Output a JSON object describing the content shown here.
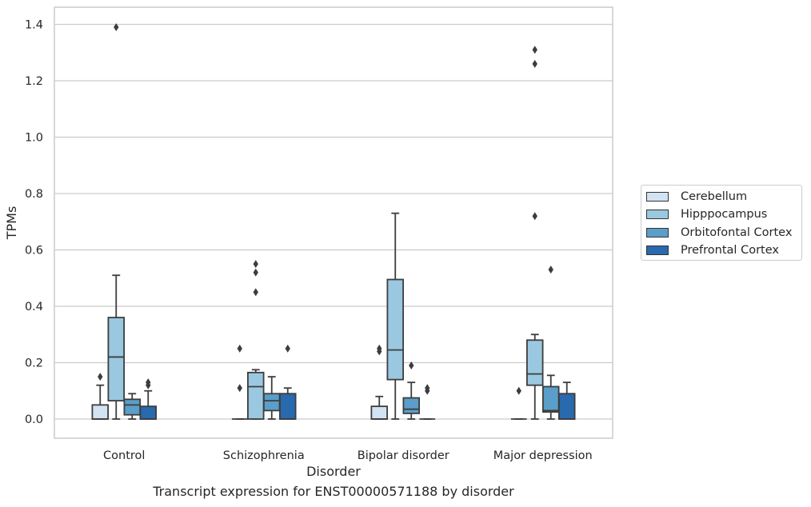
{
  "chart_data": {
    "type": "box",
    "title": "",
    "xlabel": "Disorder",
    "ylabel": "TPMs",
    "ylim": [
      -0.067,
      1.46
    ],
    "yticks": [
      "0.0",
      "0.2",
      "0.4",
      "0.6",
      "0.8",
      "1.0",
      "1.2",
      "1.4"
    ],
    "categories": [
      "Control",
      "Schizophrenia",
      "Bipolar disorder",
      "Major depression"
    ],
    "grid": "horizontal",
    "legend_position": "right",
    "series": [
      {
        "name": "Cerebellum",
        "color": "#d2e3f3",
        "boxes": [
          {
            "min": 0.0,
            "q1": 0.0,
            "median": 0.0,
            "q3": 0.05,
            "max": 0.12,
            "outliers": [
              0.15
            ]
          },
          {
            "min": 0.0,
            "q1": 0.0,
            "median": 0.0,
            "q3": 0.0,
            "max": 0.0,
            "outliers": [
              0.11,
              0.25
            ]
          },
          {
            "min": 0.0,
            "q1": 0.0,
            "median": 0.0,
            "q3": 0.045,
            "max": 0.08,
            "outliers": [
              0.24,
              0.25
            ]
          },
          {
            "min": 0.0,
            "q1": 0.0,
            "median": 0.0,
            "q3": 0.0,
            "max": 0.0,
            "outliers": [
              0.1
            ]
          }
        ]
      },
      {
        "name": "Hipppocampus",
        "color": "#9ac8e0",
        "boxes": [
          {
            "min": 0.0,
            "q1": 0.065,
            "median": 0.22,
            "q3": 0.36,
            "max": 0.51,
            "outliers": [
              1.39
            ]
          },
          {
            "min": 0.0,
            "q1": 0.0,
            "median": 0.115,
            "q3": 0.165,
            "max": 0.175,
            "outliers": [
              0.45,
              0.52,
              0.55
            ]
          },
          {
            "min": 0.0,
            "q1": 0.14,
            "median": 0.245,
            "q3": 0.495,
            "max": 0.73,
            "outliers": []
          },
          {
            "min": 0.0,
            "q1": 0.12,
            "median": 0.16,
            "q3": 0.28,
            "max": 0.3,
            "outliers": [
              0.72,
              1.26,
              1.31
            ]
          }
        ]
      },
      {
        "name": "Orbitofontal Cortex",
        "color": "#5a9ec9",
        "boxes": [
          {
            "min": 0.0,
            "q1": 0.015,
            "median": 0.05,
            "q3": 0.07,
            "max": 0.09,
            "outliers": []
          },
          {
            "min": 0.0,
            "q1": 0.03,
            "median": 0.065,
            "q3": 0.09,
            "max": 0.15,
            "outliers": []
          },
          {
            "min": 0.0,
            "q1": 0.02,
            "median": 0.035,
            "q3": 0.075,
            "max": 0.13,
            "outliers": [
              0.19
            ]
          },
          {
            "min": 0.0,
            "q1": 0.025,
            "median": 0.03,
            "q3": 0.115,
            "max": 0.155,
            "outliers": [
              0.53
            ]
          }
        ]
      },
      {
        "name": "Prefrontal Cortex",
        "color": "#2969ad",
        "boxes": [
          {
            "min": 0.0,
            "q1": 0.0,
            "median": 0.0,
            "q3": 0.045,
            "max": 0.1,
            "outliers": [
              0.12,
              0.13
            ]
          },
          {
            "min": 0.0,
            "q1": 0.0,
            "median": 0.0,
            "q3": 0.09,
            "max": 0.11,
            "outliers": [
              0.25
            ]
          },
          {
            "min": 0.0,
            "q1": 0.0,
            "median": 0.0,
            "q3": 0.0,
            "max": 0.0,
            "outliers": [
              0.1,
              0.11
            ]
          },
          {
            "min": 0.0,
            "q1": 0.0,
            "median": 0.0,
            "q3": 0.09,
            "max": 0.13,
            "outliers": []
          }
        ]
      }
    ]
  },
  "caption": "Transcript expression for ENST00000571188 by disorder"
}
